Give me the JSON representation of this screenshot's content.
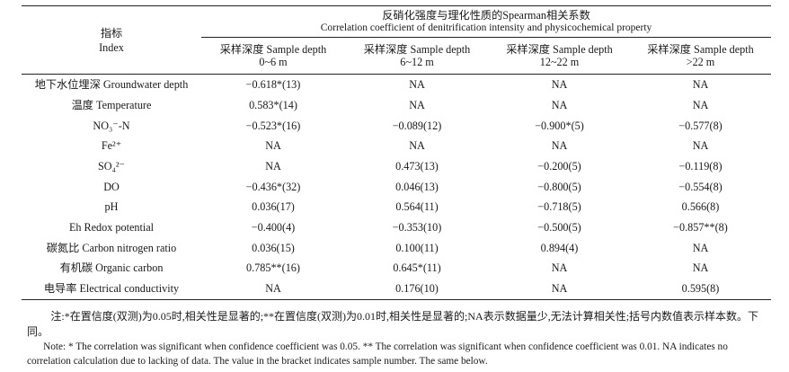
{
  "table": {
    "index_label_cn": "指标",
    "index_label_en": "Index",
    "spanning_header_cn": "反硝化强度与理化性质的Spearman相关系数",
    "spanning_header_en": "Correlation coefficient of denitrification intensity and physicochemical property",
    "columns": [
      {
        "line1": "采样深度 Sample depth",
        "line2": "0~6 m"
      },
      {
        "line1": "采样深度 Sample depth",
        "line2": "6~12 m"
      },
      {
        "line1": "采样深度 Sample depth",
        "line2": "12~22 m"
      },
      {
        "line1": "采样深度 Sample depth",
        "line2": ">22 m"
      }
    ],
    "rows": [
      {
        "property": "地下水位埋深 Groundwater depth",
        "values": [
          "−0.618*(13)",
          "NA",
          "NA",
          "NA"
        ]
      },
      {
        "property": "温度 Temperature",
        "values": [
          "0.583*(14)",
          "NA",
          "NA",
          "NA"
        ]
      },
      {
        "property": "NO₃⁻-N",
        "values": [
          "−0.523*(16)",
          "−0.089(12)",
          "−0.900*(5)",
          "−0.577(8)"
        ]
      },
      {
        "property": "Fe²⁺",
        "values": [
          "NA",
          "NA",
          "NA",
          "NA"
        ]
      },
      {
        "property": "SO₄²⁻",
        "values": [
          "NA",
          "0.473(13)",
          "−0.200(5)",
          "−0.119(8)"
        ]
      },
      {
        "property": "DO",
        "values": [
          "−0.436*(32)",
          "0.046(13)",
          "−0.800(5)",
          "−0.554(8)"
        ]
      },
      {
        "property": "pH",
        "values": [
          "0.036(17)",
          "0.564(11)",
          "−0.718(5)",
          "0.566(8)"
        ]
      },
      {
        "property": "Eh Redox potential",
        "values": [
          "−0.400(4)",
          "−0.353(10)",
          "−0.500(5)",
          "−0.857**(8)"
        ]
      },
      {
        "property": "碳氮比 Carbon nitrogen ratio",
        "values": [
          "0.036(15)",
          "0.100(11)",
          "0.894(4)",
          "NA"
        ]
      },
      {
        "property": "有机碳 Organic carbon",
        "values": [
          "0.785**(16)",
          "0.645*(11)",
          "NA",
          "NA"
        ]
      },
      {
        "property": "电导率 Electrical conductivity",
        "values": [
          "NA",
          "0.176(10)",
          "NA",
          "0.595(8)"
        ]
      }
    ]
  },
  "notes": {
    "cn": "注:*在置信度(双测)为0.05时,相关性是显著的;**在置信度(双测)为0.01时,相关性是显著的;NA表示数据量少,无法计算相关性;括号内数值表示样本数。下同。",
    "en": "Note: * The correlation was significant when confidence coefficient was 0.05. ** The correlation was significant when confidence coefficient was 0.01. NA indicates no correlation calculation due to lacking of data. The value in the bracket indicates sample number. The same below."
  }
}
